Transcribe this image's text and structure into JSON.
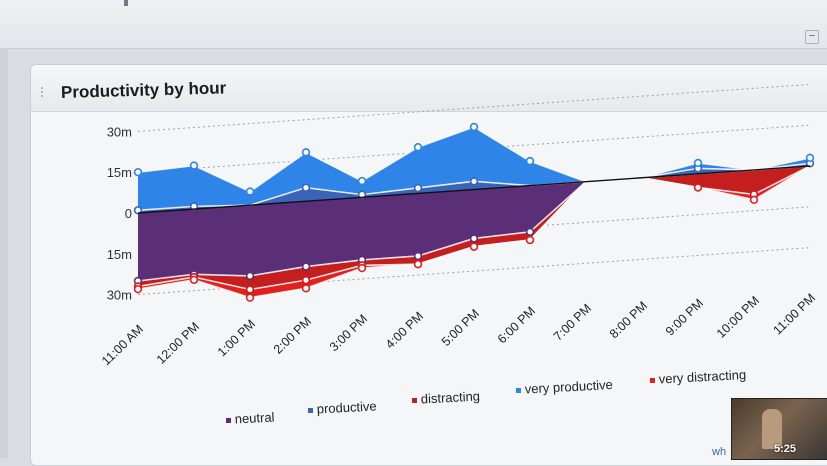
{
  "chart_data": {
    "type": "area",
    "title": "Productivity by hour",
    "xlabel": "",
    "ylabel": "",
    "categories": [
      "11:00 AM",
      "12:00 PM",
      "1:00 PM",
      "2:00 PM",
      "3:00 PM",
      "4:00 PM",
      "5:00 PM",
      "6:00 PM",
      "7:00 PM",
      "8:00 PM",
      "9:00 PM",
      "10:00 PM",
      "11:00 PM"
    ],
    "yticks": [
      {
        "label": "30m",
        "value": 30
      },
      {
        "label": "15m",
        "value": 15
      },
      {
        "label": "0",
        "value": 0
      },
      {
        "label": "15m",
        "value": -15
      },
      {
        "label": "30m",
        "value": -30
      }
    ],
    "ylim": [
      -36,
      36
    ],
    "grid": true,
    "legend_position": "bottom",
    "series": [
      {
        "name": "neutral",
        "color": "#5a2f78",
        "direction": "down",
        "values": [
          25,
          24,
          26,
          24,
          23,
          23,
          18,
          17,
          0,
          0,
          0,
          0,
          0
        ]
      },
      {
        "name": "productive",
        "color": "#3a64b8",
        "direction": "up",
        "values": [
          1,
          1,
          0,
          5,
          1,
          2,
          3,
          0,
          0,
          0,
          2,
          0,
          1
        ]
      },
      {
        "name": "distracting",
        "color": "#c41e1e",
        "direction": "down",
        "values": [
          2,
          1,
          5,
          5,
          2,
          3,
          3,
          3,
          0,
          0,
          5,
          9,
          0
        ]
      },
      {
        "name": "very productive",
        "color": "#2f84e8",
        "direction": "up",
        "values": [
          14,
          15,
          5,
          13,
          5,
          15,
          20,
          9,
          0,
          0,
          2,
          0,
          2
        ]
      },
      {
        "name": "very distracting",
        "color": "#e51e1e",
        "direction": "down",
        "values": [
          1,
          1,
          3,
          3,
          1,
          0,
          0,
          0,
          0,
          0,
          0,
          2,
          0
        ]
      }
    ]
  },
  "player": {
    "timestamp": "5:25",
    "corner_text": "wh"
  },
  "ui": {
    "collapse_glyph": "–"
  }
}
